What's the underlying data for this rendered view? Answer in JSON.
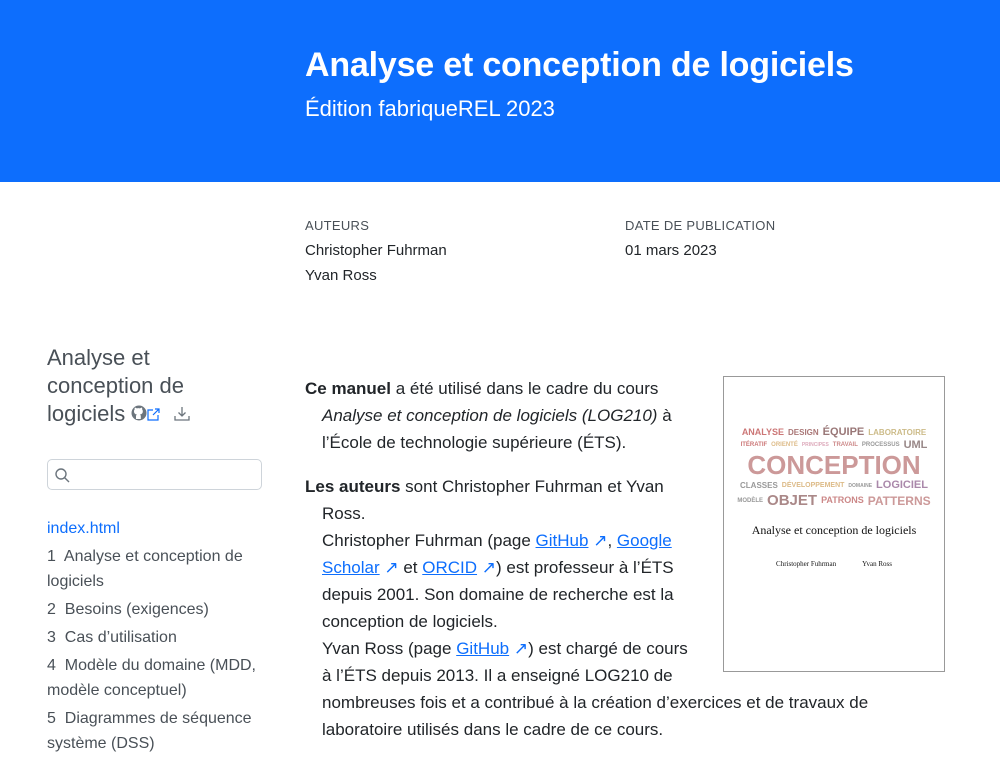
{
  "header": {
    "title": "Analyse et conception de logiciels",
    "subtitle": "Édition fabriqueREL 2023",
    "bg": "#0d6efd"
  },
  "meta": {
    "authors_label": "AUTEURS",
    "authors": [
      "Christopher Fuhrman",
      "Yvan Ross"
    ],
    "date_label": "DATE DE PUBLICATION",
    "date": "01 mars 2023"
  },
  "sidebar": {
    "title": "Analyse et conception de logiciels",
    "search_placeholder": "",
    "toc": [
      {
        "label": "index.html"
      },
      {
        "num": "1",
        "label": "Analyse et conception de logiciels"
      },
      {
        "num": "2",
        "label": "Besoins (exigences)"
      },
      {
        "num": "3",
        "label": "Cas d’utilisation"
      },
      {
        "num": "4",
        "label": "Modèle du domaine (MDD, modèle conceptuel)"
      },
      {
        "num": "5",
        "label": "Diagrammes de séquence système (DSS)"
      }
    ]
  },
  "main": {
    "p1": {
      "b": "Ce manuel",
      "t1": " a été utilisé dans le cadre du cours ",
      "i": "Analyse et conception de logiciels (LOG210)",
      "t2": " à l’École de technologie supérieure (ÉTS)."
    },
    "p2": {
      "b": "Les auteurs",
      "t1": " sont Christopher Fuhrman et Yvan Ross.",
      "t2": "Christopher Fuhrman (page ",
      "l1": "GitHub",
      "s1": ", ",
      "l2": "Google Scholar",
      "s2": " et ",
      "l3": "ORCID",
      "t3": ") est professeur à l’ÉTS depuis 2001. Son domaine de recherche est la conception de logiciels.",
      "t4": "Yvan Ross (page ",
      "l4": "GitHub",
      "t5": ") est chargé de cours à l’ÉTS depuis 2013. Il a enseigné LOG210 de nombreuses fois et a contribué à la création d’exercices et de travaux de laboratoire utilisés dans le cadre de ce cours."
    }
  },
  "cover": {
    "title": "Analyse et conception de logiciels",
    "authors": [
      "Christopher Fuhrman",
      "Yvan Ross"
    ],
    "words": [
      "CONCEPTION",
      "ANALYSE",
      "DESIGN",
      "ÉQUIPE",
      "LABORATOIRE",
      "ITÉRATIF",
      "ORIENTÉ",
      "PRINCIPES",
      "TRAVAIL",
      "PROCESSUS",
      "UML",
      "CLASSES",
      "DÉVELOPPEMENT",
      "DOMAINE",
      "LOGICIEL",
      "MODÈLE",
      "OBJET",
      "PATRONS",
      "PATTERNS"
    ]
  }
}
